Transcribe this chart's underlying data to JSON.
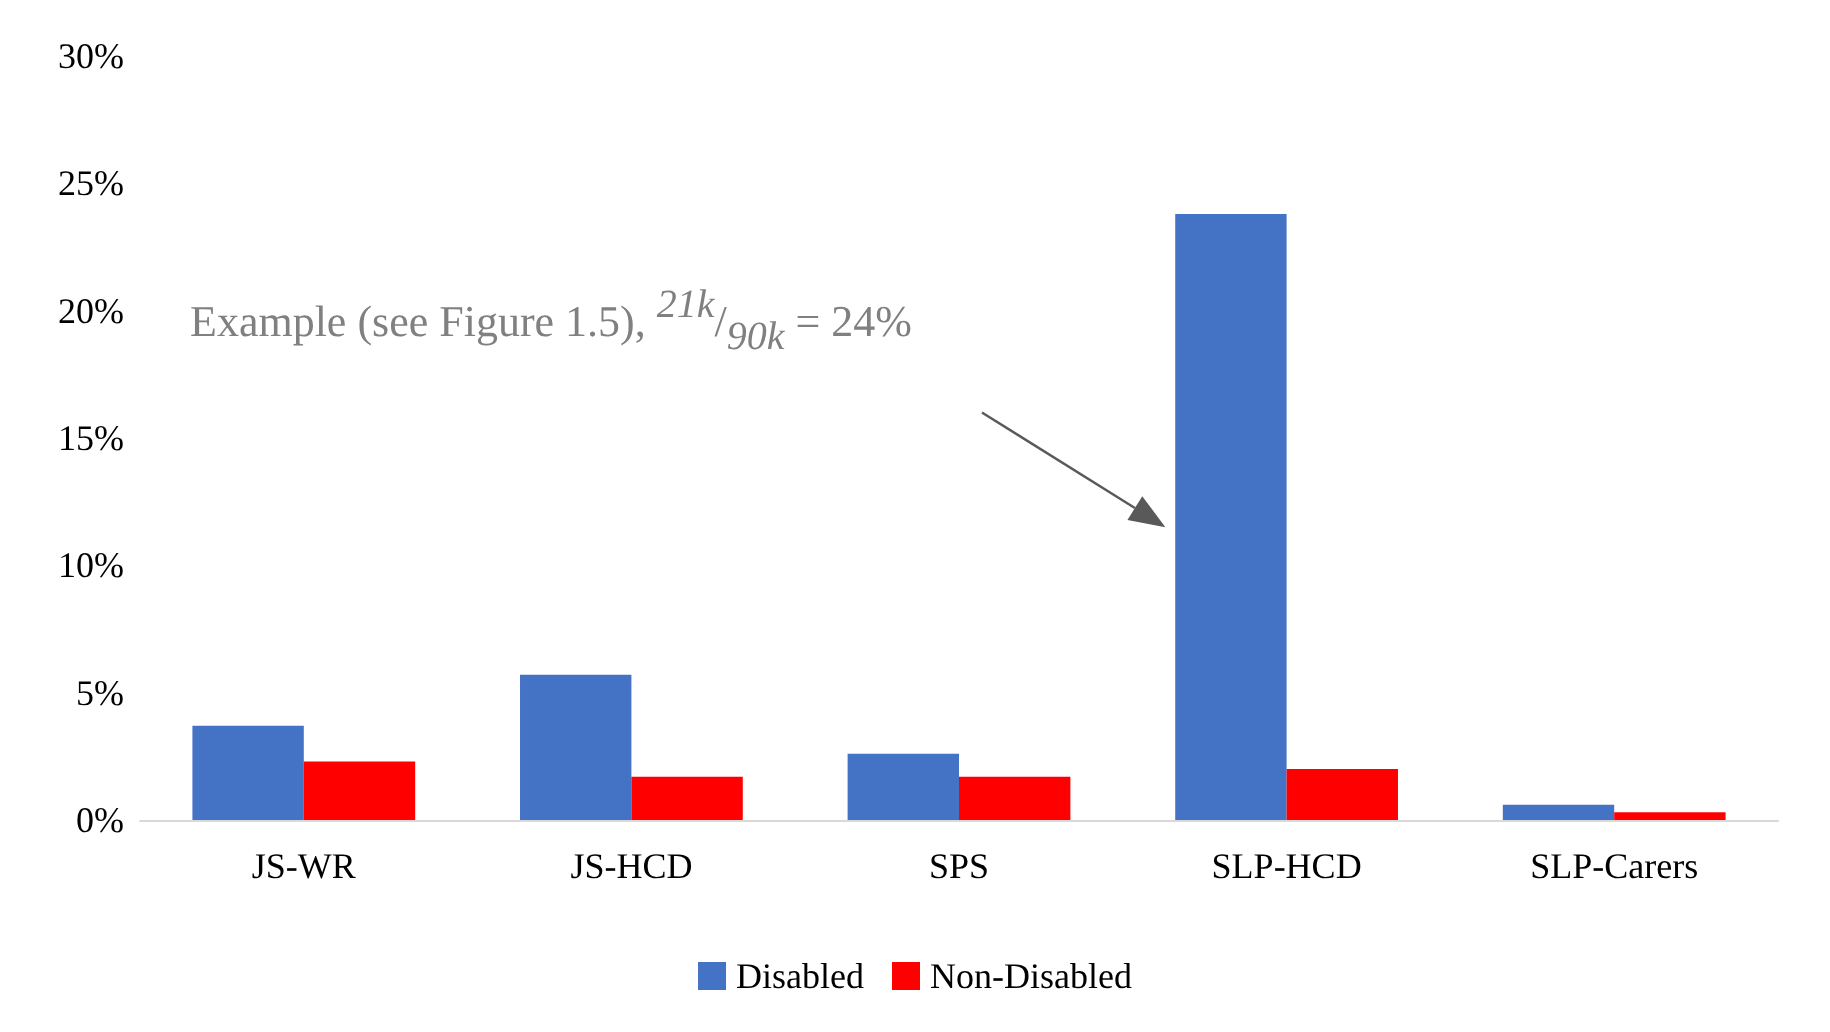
{
  "chart_data": {
    "type": "bar",
    "categories": [
      "JS-WR",
      "JS-HCD",
      "SPS",
      "SLP-HCD",
      "SLP-Carers"
    ],
    "series": [
      {
        "name": "Disabled",
        "color": "#4472c4",
        "values": [
          3.7,
          5.7,
          2.6,
          23.8,
          0.6
        ]
      },
      {
        "name": "Non-Disabled",
        "color": "#ff0000",
        "values": [
          2.3,
          1.7,
          1.7,
          2.0,
          0.3
        ]
      }
    ],
    "ylim": [
      0,
      30
    ],
    "yticks": [
      {
        "value": 0,
        "label": "0%"
      },
      {
        "value": 5,
        "label": "5%"
      },
      {
        "value": 10,
        "label": "10%"
      },
      {
        "value": 15,
        "label": "15%"
      },
      {
        "value": 20,
        "label": "20%"
      },
      {
        "value": 25,
        "label": "25%"
      },
      {
        "value": 30,
        "label": "30%"
      }
    ],
    "grid": false,
    "legend": "bottom",
    "annotations": [
      "Example (see Figure 1.5), $^{21k}$/$_{90k}$ = 24%"
    ]
  }
}
